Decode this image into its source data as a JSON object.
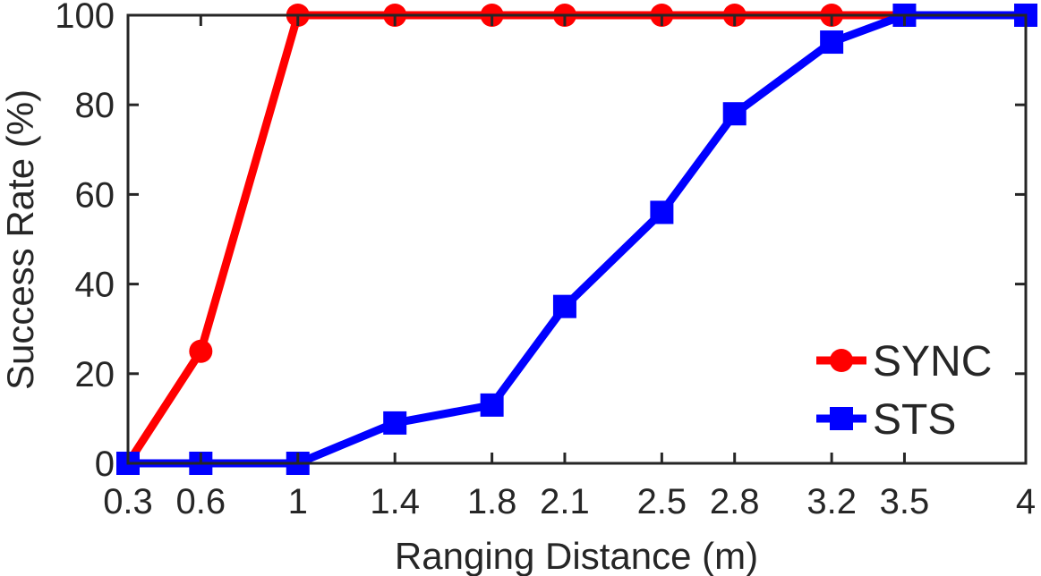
{
  "chart_data": {
    "type": "line",
    "xlabel": "Ranging Distance (m)",
    "ylabel": "Success Rate (%)",
    "x": [
      0.3,
      0.6,
      1,
      1.4,
      1.8,
      2.1,
      2.5,
      2.8,
      3.2,
      3.5,
      4
    ],
    "x_tick_labels": [
      "0.3",
      "0.6",
      "1",
      "1.4",
      "1.8",
      "2.1",
      "2.5",
      "2.8",
      "3.2",
      "3.5",
      "4"
    ],
    "xlim": [
      0.3,
      4
    ],
    "ylim": [
      0,
      100
    ],
    "y_ticks": [
      0,
      20,
      40,
      60,
      80,
      100
    ],
    "y_tick_labels": [
      "0",
      "20",
      "40",
      "60",
      "80",
      "100"
    ],
    "grid": false,
    "legend_position": "bottom-right",
    "series": [
      {
        "name": "SYNC",
        "color": "#ff0000",
        "marker": "circle",
        "values": [
          0,
          25,
          100,
          100,
          100,
          100,
          100,
          100,
          100,
          100,
          100
        ]
      },
      {
        "name": "STS",
        "color": "#0000ff",
        "marker": "square",
        "values": [
          0,
          0,
          0,
          9,
          13,
          35,
          56,
          78,
          94,
          100,
          100
        ]
      }
    ]
  }
}
